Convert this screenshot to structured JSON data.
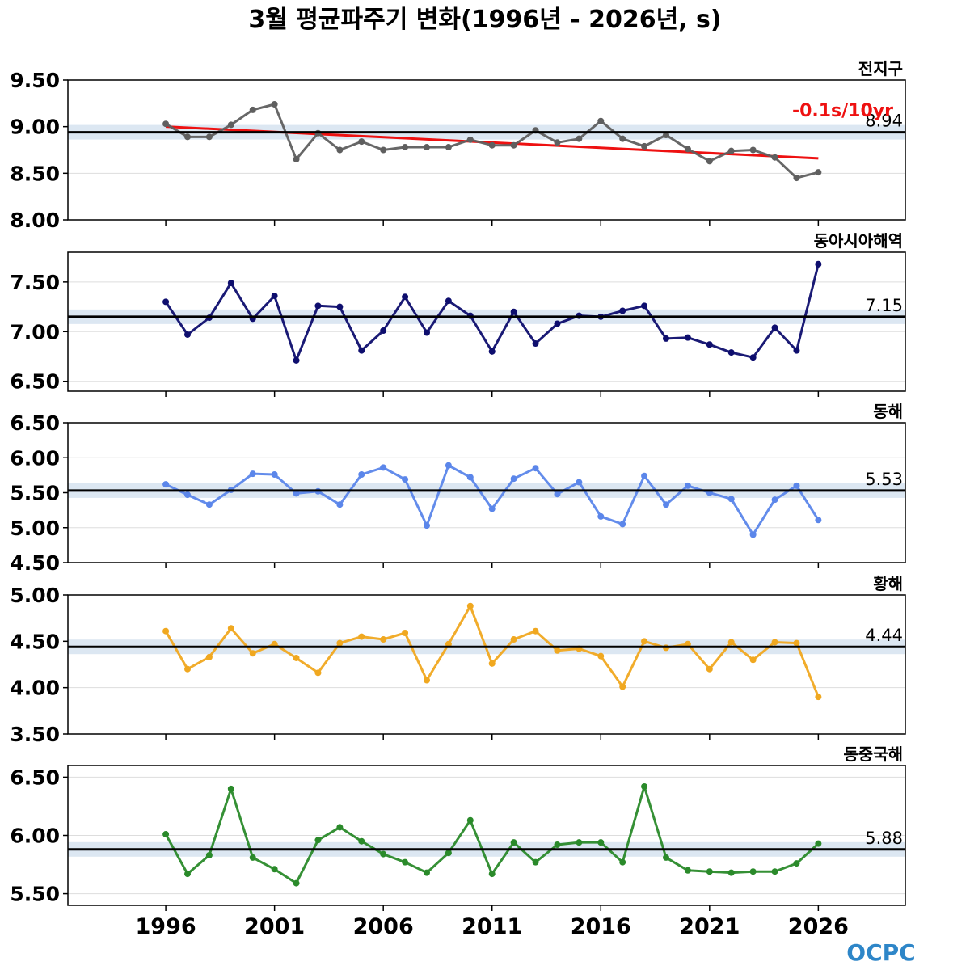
{
  "title": "3월 평균파주기 변화(1996년 - 2026년, s)",
  "logo": "OCPC",
  "chart_data": [
    {
      "type": "line",
      "title": "전지구",
      "x": [
        1996,
        1997,
        1998,
        1999,
        2000,
        2001,
        2002,
        2003,
        2004,
        2005,
        2006,
        2007,
        2008,
        2009,
        2010,
        2011,
        2012,
        2013,
        2014,
        2015,
        2016,
        2017,
        2018,
        2019,
        2020,
        2021,
        2022,
        2023,
        2024,
        2025,
        2026
      ],
      "series": [
        {
          "values": [
            9.03,
            8.89,
            8.89,
            9.02,
            9.18,
            9.24,
            8.65,
            8.93,
            8.75,
            8.84,
            8.75,
            8.78,
            8.78,
            8.78,
            8.86,
            8.8,
            8.8,
            8.96,
            8.83,
            8.87,
            9.06,
            8.87,
            8.79,
            8.91,
            8.76,
            8.63,
            8.74,
            8.75,
            8.67,
            8.45,
            8.51
          ],
          "color": "#5f5f5f"
        }
      ],
      "mean": 8.94,
      "mean_label": "8.94",
      "trend": {
        "start": 9.0,
        "end": 8.66,
        "label": "-0.1s/10yr",
        "color": "#ee1111"
      },
      "ylim": [
        8.0,
        9.5
      ],
      "yticks": [
        "8.00",
        "8.50",
        "9.00",
        "9.50"
      ],
      "ytick_values": [
        8.0,
        8.5,
        9.0,
        9.5
      ]
    },
    {
      "type": "line",
      "title": "동아시아해역",
      "x": [
        1996,
        1997,
        1998,
        1999,
        2000,
        2001,
        2002,
        2003,
        2004,
        2005,
        2006,
        2007,
        2008,
        2009,
        2010,
        2011,
        2012,
        2013,
        2014,
        2015,
        2016,
        2017,
        2018,
        2019,
        2020,
        2021,
        2022,
        2023,
        2024,
        2025,
        2026
      ],
      "series": [
        {
          "values": [
            7.3,
            6.97,
            7.14,
            7.49,
            7.13,
            7.36,
            6.71,
            7.26,
            7.25,
            6.81,
            7.01,
            7.35,
            6.99,
            7.31,
            7.16,
            6.8,
            7.2,
            6.88,
            7.08,
            7.16,
            7.15,
            7.21,
            7.26,
            6.93,
            6.94,
            6.87,
            6.79,
            6.74,
            7.04,
            6.81,
            7.68
          ],
          "color": "#0e0e6e"
        }
      ],
      "mean": 7.15,
      "mean_label": "7.15",
      "ylim": [
        6.4,
        7.8
      ],
      "yticks": [
        "6.50",
        "7.00",
        "7.50"
      ],
      "ytick_values": [
        6.5,
        7.0,
        7.5
      ]
    },
    {
      "type": "line",
      "title": "동해",
      "x": [
        1996,
        1997,
        1998,
        1999,
        2000,
        2001,
        2002,
        2003,
        2004,
        2005,
        2006,
        2007,
        2008,
        2009,
        2010,
        2011,
        2012,
        2013,
        2014,
        2015,
        2016,
        2017,
        2018,
        2019,
        2020,
        2021,
        2022,
        2023,
        2024,
        2025,
        2026
      ],
      "series": [
        {
          "values": [
            5.62,
            5.47,
            5.33,
            5.54,
            5.77,
            5.76,
            5.49,
            5.52,
            5.33,
            5.76,
            5.86,
            5.69,
            5.03,
            5.89,
            5.72,
            5.27,
            5.7,
            5.85,
            5.48,
            5.65,
            5.16,
            5.05,
            5.74,
            5.33,
            5.6,
            5.5,
            5.41,
            4.9,
            5.4,
            5.6,
            5.11
          ],
          "color": "#5b86ea"
        }
      ],
      "mean": 5.53,
      "mean_label": "5.53",
      "ylim": [
        4.5,
        6.5
      ],
      "yticks": [
        "4.50",
        "5.00",
        "5.50",
        "6.00",
        "6.50"
      ],
      "ytick_values": [
        4.5,
        5.0,
        5.5,
        6.0,
        6.5
      ]
    },
    {
      "type": "line",
      "title": "황해",
      "x": [
        1996,
        1997,
        1998,
        1999,
        2000,
        2001,
        2002,
        2003,
        2004,
        2005,
        2006,
        2007,
        2008,
        2009,
        2010,
        2011,
        2012,
        2013,
        2014,
        2015,
        2016,
        2017,
        2018,
        2019,
        2020,
        2021,
        2022,
        2023,
        2024,
        2025,
        2026
      ],
      "series": [
        {
          "values": [
            4.61,
            4.2,
            4.33,
            4.64,
            4.37,
            4.47,
            4.32,
            4.16,
            4.48,
            4.55,
            4.52,
            4.59,
            4.08,
            4.47,
            4.88,
            4.26,
            4.52,
            4.61,
            4.4,
            4.42,
            4.34,
            4.01,
            4.5,
            4.43,
            4.47,
            4.2,
            4.49,
            4.3,
            4.49,
            4.48,
            3.9
          ],
          "color": "#f0a820"
        }
      ],
      "mean": 4.44,
      "mean_label": "4.44",
      "ylim": [
        3.5,
        5.0
      ],
      "yticks": [
        "3.50",
        "4.00",
        "4.50",
        "5.00"
      ],
      "ytick_values": [
        3.5,
        4.0,
        4.5,
        5.0
      ]
    },
    {
      "type": "line",
      "title": "동중국해",
      "x": [
        1996,
        1997,
        1998,
        1999,
        2000,
        2001,
        2002,
        2003,
        2004,
        2005,
        2006,
        2007,
        2008,
        2009,
        2010,
        2011,
        2012,
        2013,
        2014,
        2015,
        2016,
        2017,
        2018,
        2019,
        2020,
        2021,
        2022,
        2023,
        2024,
        2025,
        2026
      ],
      "series": [
        {
          "values": [
            6.01,
            5.67,
            5.83,
            6.4,
            5.81,
            5.71,
            5.59,
            5.96,
            6.07,
            5.95,
            5.84,
            5.77,
            5.68,
            5.85,
            6.13,
            5.67,
            5.94,
            5.77,
            5.92,
            5.94,
            5.94,
            5.77,
            6.42,
            5.81,
            5.7,
            5.69,
            5.68,
            5.69,
            5.69,
            5.76,
            5.93
          ],
          "color": "#2a8a2a"
        }
      ],
      "mean": 5.88,
      "mean_label": "5.88",
      "ylim": [
        5.4,
        6.6
      ],
      "yticks": [
        "5.50",
        "6.00",
        "6.50"
      ],
      "ytick_values": [
        5.5,
        6.0,
        6.5
      ]
    }
  ],
  "xaxis": {
    "ticks": [
      "1996",
      "2001",
      "2006",
      "2011",
      "2016",
      "2021",
      "2026"
    ],
    "tick_values": [
      1996,
      2001,
      2006,
      2011,
      2016,
      2021,
      2026
    ],
    "xlim": [
      1991.5,
      2030
    ]
  },
  "style": {
    "mean_line_color": "#000000",
    "mean_band_color": "#dce7f2",
    "grid_color": "#dddddd",
    "logo_color": "#2e86c8"
  }
}
